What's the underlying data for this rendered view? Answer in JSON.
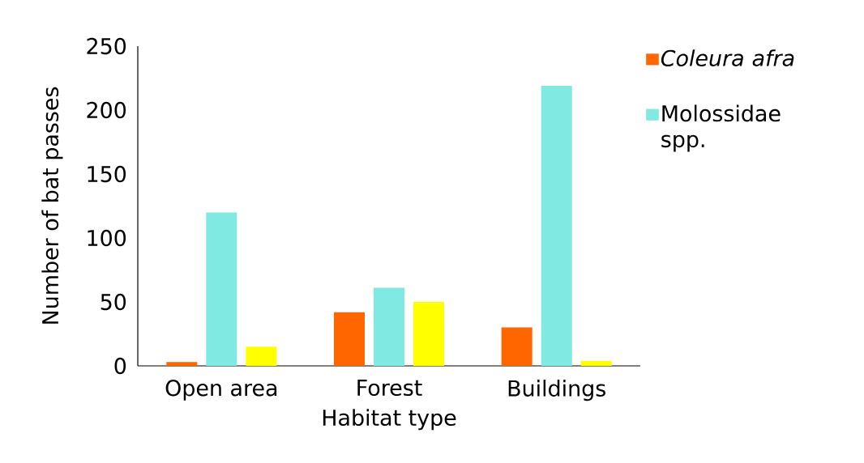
{
  "chart_data": {
    "type": "bar",
    "xlabel": "Habitat type",
    "ylabel": "Number of bat passes",
    "categories": [
      "Open area",
      "Forest",
      "Buildings"
    ],
    "series": [
      {
        "name": "*Coleura afra*",
        "color": "#ff6600",
        "values": [
          3,
          42,
          30
        ]
      },
      {
        "name": "Molossidae spp.",
        "color": "#7fe9e2",
        "values": [
          120,
          61,
          219
        ]
      },
      {
        "color": "#ffff00",
        "values": [
          15,
          50,
          4
        ]
      }
    ],
    "ylim": [
      0,
      250
    ],
    "yticks": [
      0,
      50,
      100,
      150,
      200,
      250
    ],
    "grid": false,
    "legend": "top right"
  }
}
